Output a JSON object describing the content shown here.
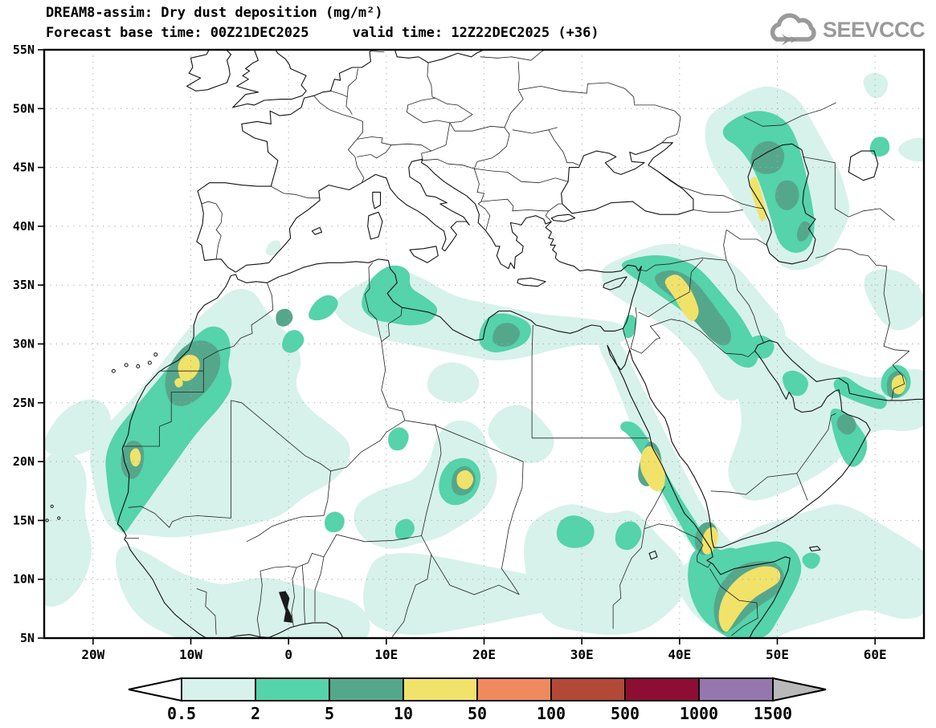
{
  "header": {
    "title": "DREAM8-assim: Dry dust deposition (mg/m²)",
    "forecast_base": "Forecast base time: 00Z21DEC2025",
    "valid_time": "valid time: 12Z22DEC2025 (+36)",
    "logo_text": "SEEVCCC",
    "logo_color": "#9a9a9a"
  },
  "map": {
    "lat_tick_labels": [
      "55N",
      "50N",
      "45N",
      "40N",
      "35N",
      "30N",
      "25N",
      "20N",
      "15N",
      "10N",
      "5N"
    ],
    "lon_tick_labels": [
      "20W",
      "10W",
      "0",
      "10E",
      "20E",
      "30E",
      "40E",
      "50E",
      "60E"
    ],
    "fill_levels": [
      {
        "range": "0.5-2 mg/m²",
        "color": "#d7f2ea"
      },
      {
        "range": "2-5 mg/m²",
        "color": "#55d3ab"
      },
      {
        "range": "5-10 mg/m²",
        "color": "#55a78b"
      },
      {
        "range": "10-50 mg/m²",
        "color": "#f1e26a"
      }
    ],
    "coast_color": "#111111",
    "border_color": "#222222",
    "grid_color": "#a8a8a8"
  },
  "legend": {
    "units": "mg/m²",
    "tick_labels": [
      "0.5",
      "2",
      "5",
      "10",
      "50",
      "100",
      "500",
      "1000",
      "1500"
    ],
    "segment_colors": [
      "#d7f2ea",
      "#55d3ab",
      "#55a78b",
      "#f1e26a",
      "#ef8a5e",
      "#b24936",
      "#8e0d35",
      "#9577ae"
    ],
    "under_range_color": "#ffffff",
    "over_range_color": "#b9b9b9"
  }
}
